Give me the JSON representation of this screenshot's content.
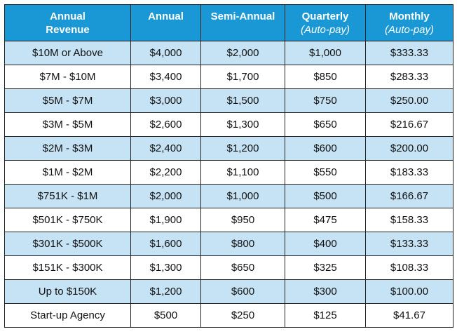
{
  "headers": {
    "revenue": "Annual Revenue",
    "annual": "Annual",
    "semi_annual": "Semi-Annual",
    "quarterly": "Quarterly",
    "quarterly_sub": "(Auto-pay)",
    "monthly": "Monthly",
    "monthly_sub": "(Auto-pay)"
  },
  "colors": {
    "header_bg": "#1a98d5",
    "shaded_row": "#c5e3f4",
    "plain_row": "#ffffff"
  },
  "rows": [
    {
      "revenue": "$10M or Above",
      "annual": "$4,000",
      "semi_annual": "$2,000",
      "quarterly": "$1,000",
      "monthly": "$333.33"
    },
    {
      "revenue": "$7M - $10M",
      "annual": "$3,400",
      "semi_annual": "$1,700",
      "quarterly": "$850",
      "monthly": "$283.33"
    },
    {
      "revenue": "$5M - $7M",
      "annual": "$3,000",
      "semi_annual": "$1,500",
      "quarterly": "$750",
      "monthly": "$250.00"
    },
    {
      "revenue": "$3M - $5M",
      "annual": "$2,600",
      "semi_annual": "$1,300",
      "quarterly": "$650",
      "monthly": "$216.67"
    },
    {
      "revenue": "$2M - $3M",
      "annual": "$2,400",
      "semi_annual": "$1,200",
      "quarterly": "$600",
      "monthly": "$200.00"
    },
    {
      "revenue": "$1M - $2M",
      "annual": "$2,200",
      "semi_annual": "$1,100",
      "quarterly": "$550",
      "monthly": "$183.33"
    },
    {
      "revenue": "$751K - $1M",
      "annual": "$2,000",
      "semi_annual": "$1,000",
      "quarterly": "$500",
      "monthly": "$166.67"
    },
    {
      "revenue": "$501K - $750K",
      "annual": "$1,900",
      "semi_annual": "$950",
      "quarterly": "$475",
      "monthly": "$158.33"
    },
    {
      "revenue": "$301K - $500K",
      "annual": "$1,600",
      "semi_annual": "$800",
      "quarterly": "$400",
      "monthly": "$133.33"
    },
    {
      "revenue": "$151K - $300K",
      "annual": "$1,300",
      "semi_annual": "$650",
      "quarterly": "$325",
      "monthly": "$108.33"
    },
    {
      "revenue": "Up to $150K",
      "annual": "$1,200",
      "semi_annual": "$600",
      "quarterly": "$300",
      "monthly": "$100.00"
    },
    {
      "revenue": "Start-up Agency",
      "annual": "$500",
      "semi_annual": "$250",
      "quarterly": "$125",
      "monthly": "$41.67"
    }
  ]
}
